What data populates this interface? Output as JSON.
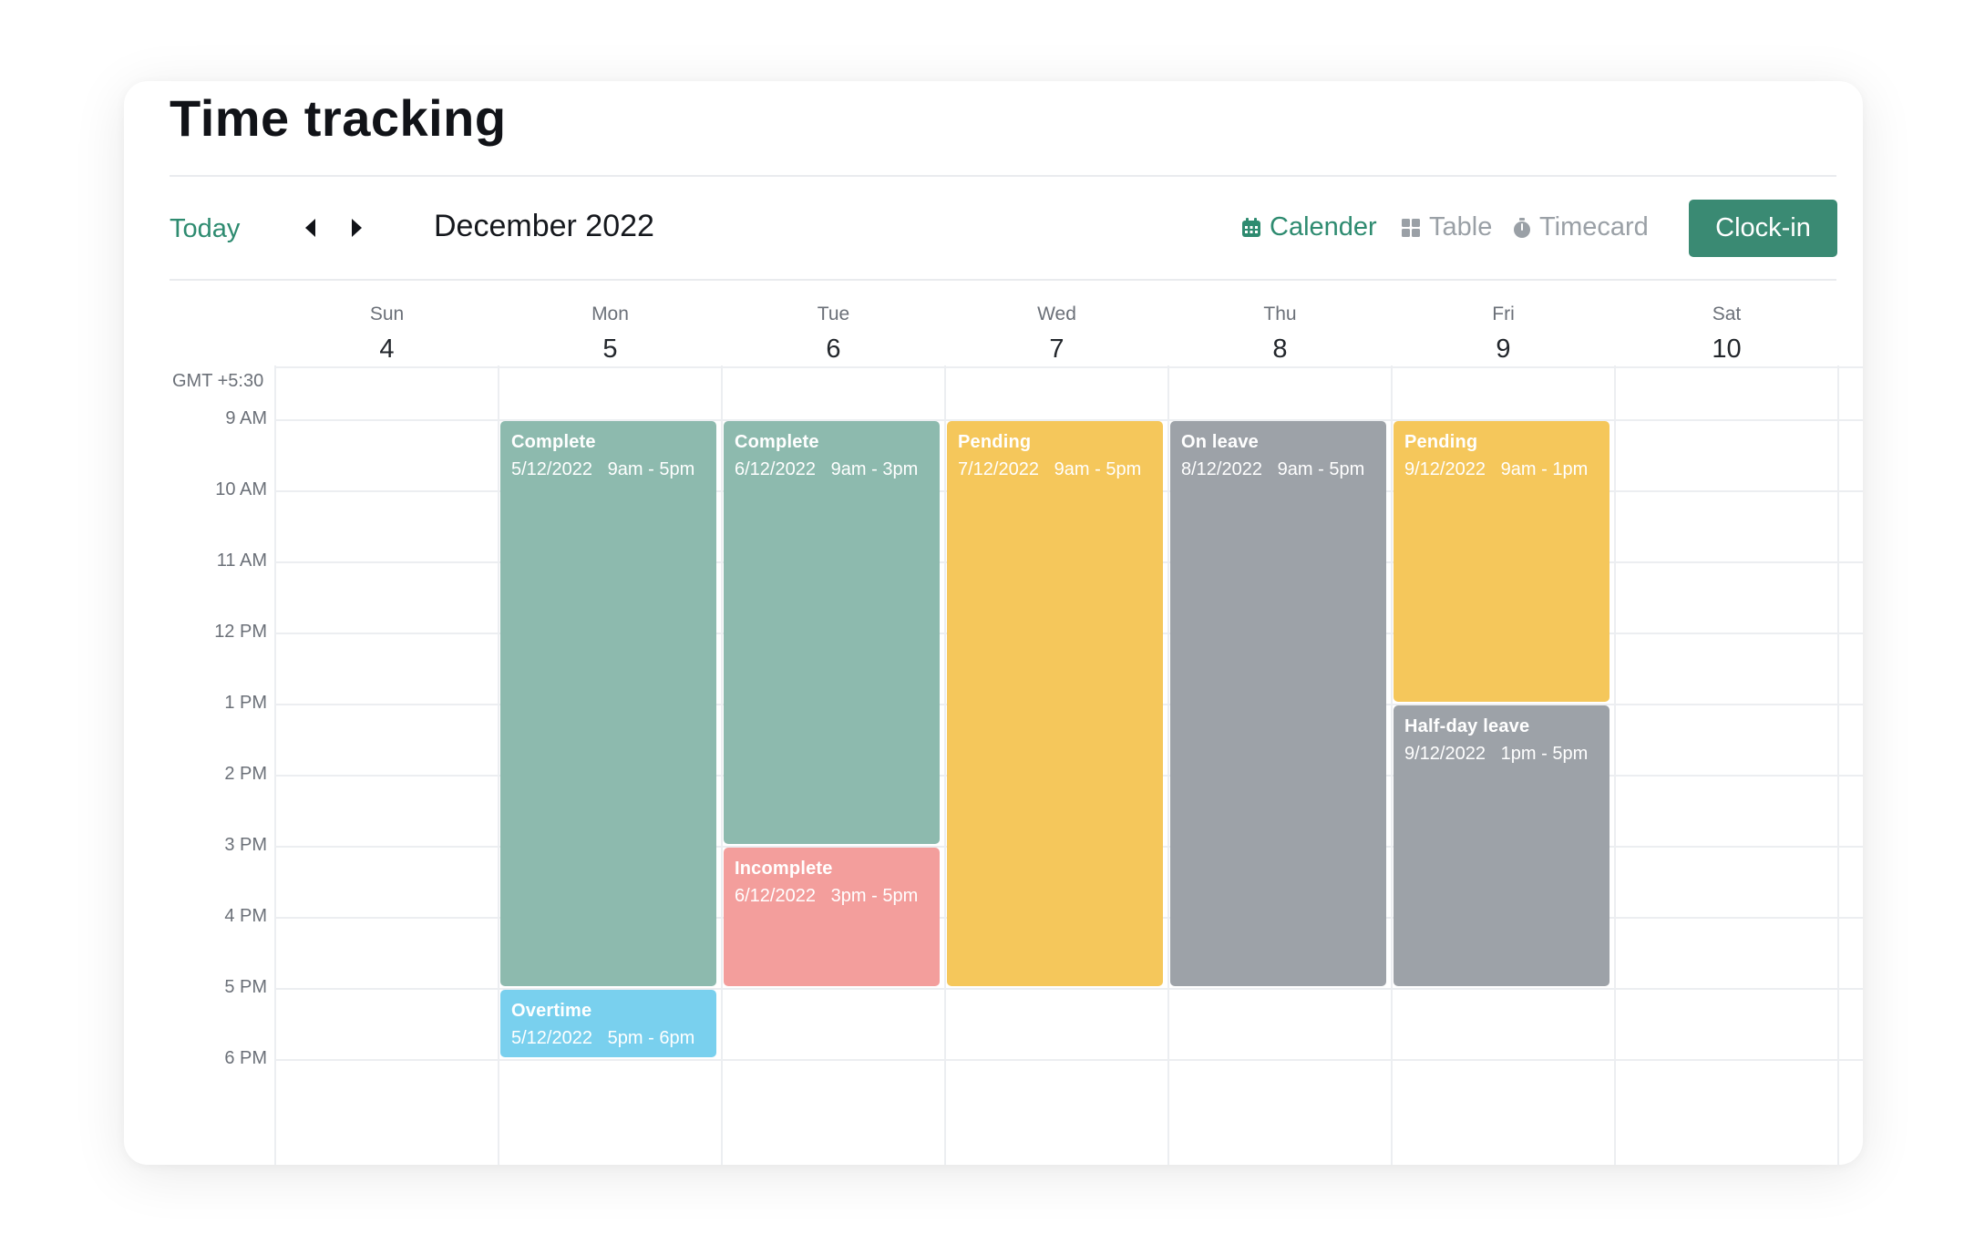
{
  "page": {
    "title": "Time tracking"
  },
  "toolbar": {
    "today_label": "Today",
    "month_label": "December 2022",
    "prev_icon": "caret-left-icon",
    "next_icon": "caret-right-icon",
    "views": [
      {
        "label": "Calender",
        "icon": "calendar-icon",
        "active": true
      },
      {
        "label": "Table",
        "icon": "grid-icon",
        "active": false
      },
      {
        "label": "Timecard",
        "icon": "stopwatch-icon",
        "active": false
      }
    ],
    "clockin_label": "Clock-in"
  },
  "calendar": {
    "timezone": "GMT +5:30",
    "days": [
      {
        "name": "Sun",
        "num": "4"
      },
      {
        "name": "Mon",
        "num": "5"
      },
      {
        "name": "Tue",
        "num": "6"
      },
      {
        "name": "Wed",
        "num": "7"
      },
      {
        "name": "Thu",
        "num": "8"
      },
      {
        "name": "Fri",
        "num": "9"
      },
      {
        "name": "Sat",
        "num": "10"
      }
    ],
    "hours": [
      "9 AM",
      "10 AM",
      "11 AM",
      "12 PM",
      "1 PM",
      "2 PM",
      "3 PM",
      "4 PM",
      "5 PM",
      "6 PM"
    ],
    "events": [
      {
        "status": "Complete",
        "date": "5/12/2022",
        "time": "9am - 5pm",
        "day_index": 1,
        "start_hour": 9,
        "end_hour": 17,
        "color": "#8dbaae"
      },
      {
        "status": "Overtime",
        "date": "5/12/2022",
        "time": "5pm - 6pm",
        "day_index": 1,
        "start_hour": 17,
        "end_hour": 18,
        "color": "#79d0ee"
      },
      {
        "status": "Complete",
        "date": "6/12/2022",
        "time": "9am - 3pm",
        "day_index": 2,
        "start_hour": 9,
        "end_hour": 15,
        "color": "#8dbaae"
      },
      {
        "status": "Incomplete",
        "date": "6/12/2022",
        "time": "3pm - 5pm",
        "day_index": 2,
        "start_hour": 15,
        "end_hour": 17,
        "color": "#f39e9c"
      },
      {
        "status": "Pending",
        "date": "7/12/2022",
        "time": "9am - 5pm",
        "day_index": 3,
        "start_hour": 9,
        "end_hour": 17,
        "color": "#f5c75b"
      },
      {
        "status": "On leave",
        "date": "8/12/2022",
        "time": "9am - 5pm",
        "day_index": 4,
        "start_hour": 9,
        "end_hour": 17,
        "color": "#9da2a8"
      },
      {
        "status": "Pending",
        "date": "9/12/2022",
        "time": "9am - 1pm",
        "day_index": 5,
        "start_hour": 9,
        "end_hour": 13,
        "color": "#f5c75b"
      },
      {
        "status": "Half-day leave",
        "date": "9/12/2022",
        "time": "1pm - 5pm",
        "day_index": 5,
        "start_hour": 13,
        "end_hour": 17,
        "color": "#9da2a8"
      }
    ]
  },
  "colors": {
    "accent": "#2e8b70",
    "button": "#3a8a73"
  }
}
